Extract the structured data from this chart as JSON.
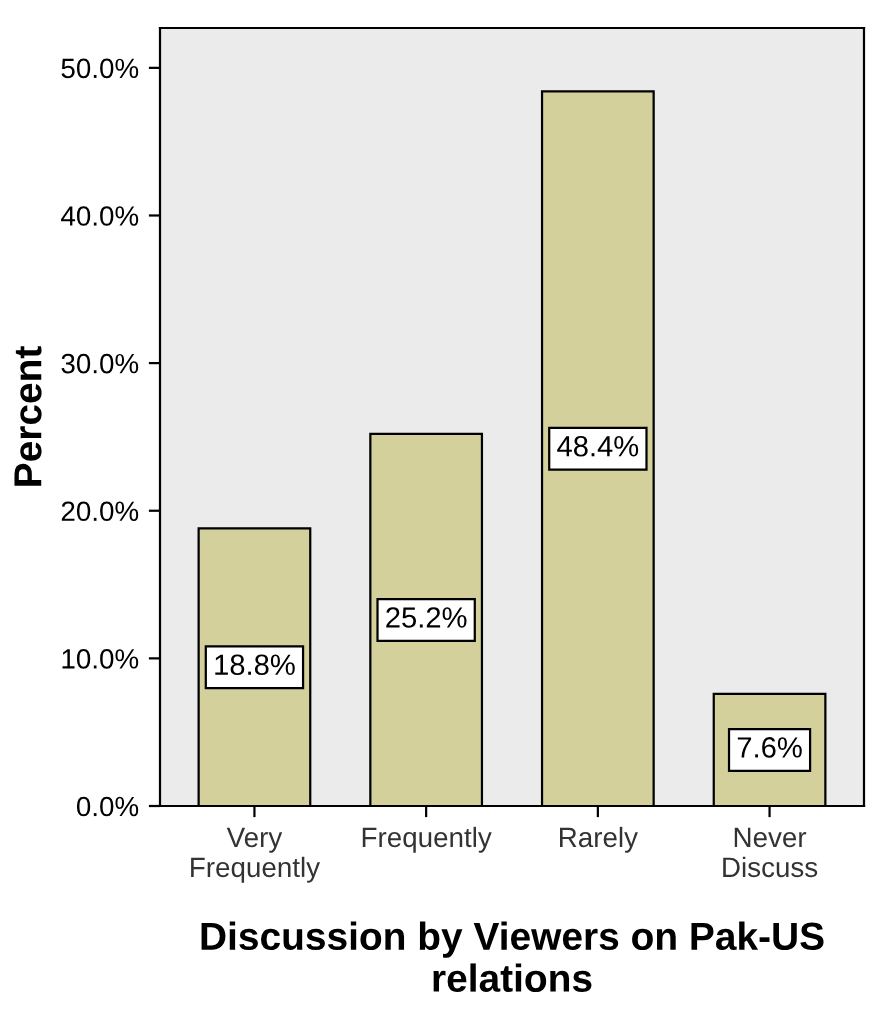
{
  "chart_data": {
    "type": "bar",
    "ylabel": "Percent",
    "xlabel": "Discussion by Viewers on Pak-US relations",
    "categories": [
      "Very\nFrequently",
      "Frequently",
      "Rarely",
      "Never\nDiscuss"
    ],
    "values": [
      18.8,
      25.2,
      48.4,
      7.6
    ],
    "value_labels": [
      "18.8%",
      "25.2%",
      "48.4%",
      "7.6%"
    ],
    "color": "#d3d09b",
    "ylim": [
      0,
      52.7
    ],
    "yticks": [
      {
        "value": 0,
        "label": "0.0%"
      },
      {
        "value": 10,
        "label": "10.0%"
      },
      {
        "value": 20,
        "label": "20.0%"
      },
      {
        "value": 30,
        "label": "30.0%"
      },
      {
        "value": 40,
        "label": "40.0%"
      },
      {
        "value": 50,
        "label": "50.0%"
      }
    ],
    "grid": false,
    "legend": false
  }
}
